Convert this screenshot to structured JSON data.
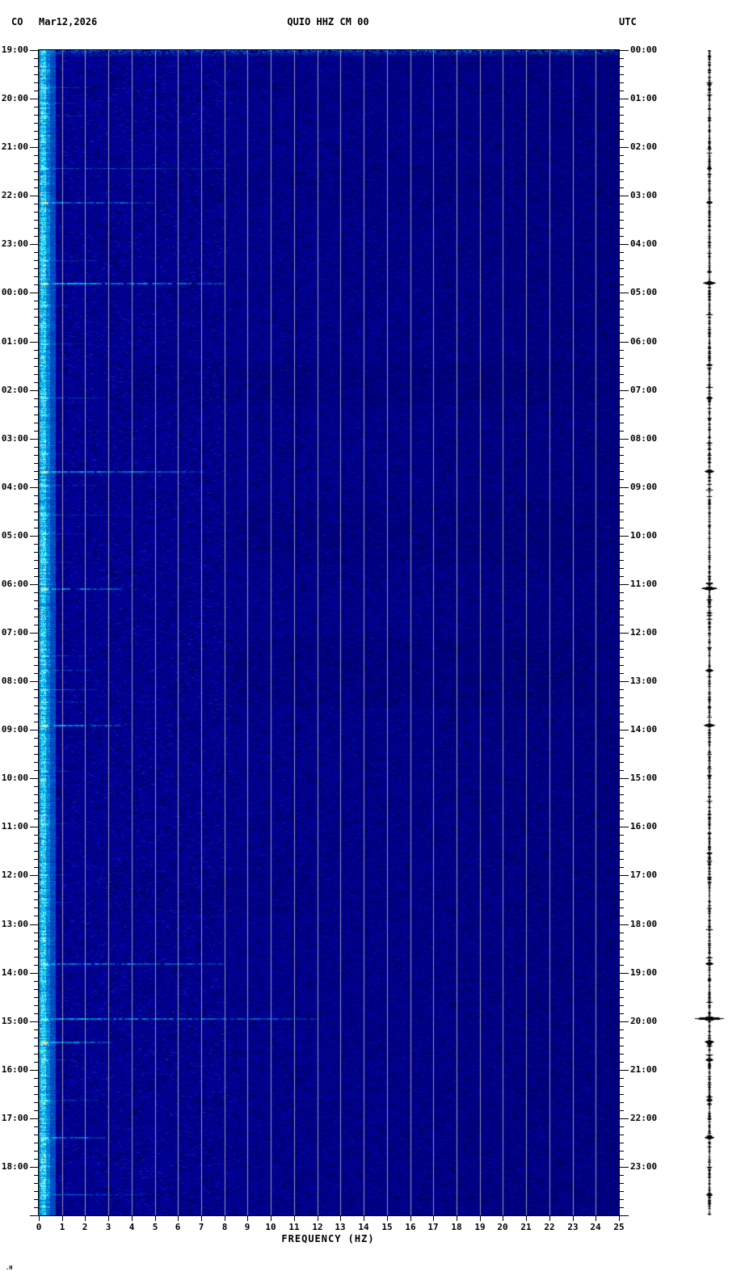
{
  "header": {
    "network": "CO",
    "date": "Mar12,2026",
    "station": "QUIO HHZ CM 00",
    "timezone": "UTC"
  },
  "y_axis_left": {
    "labels": [
      "19:00",
      "20:00",
      "21:00",
      "22:00",
      "23:00",
      "00:00",
      "01:00",
      "02:00",
      "03:00",
      "04:00",
      "05:00",
      "06:00",
      "07:00",
      "08:00",
      "09:00",
      "10:00",
      "11:00",
      "12:00",
      "13:00",
      "14:00",
      "15:00",
      "16:00",
      "17:00",
      "18:00"
    ],
    "minor_tick_minutes": 10
  },
  "y_axis_right": {
    "labels": [
      "00:00",
      "01:00",
      "02:00",
      "03:00",
      "04:00",
      "05:00",
      "06:00",
      "07:00",
      "08:00",
      "09:00",
      "10:00",
      "11:00",
      "12:00",
      "13:00",
      "14:00",
      "15:00",
      "16:00",
      "17:00",
      "18:00",
      "19:00",
      "20:00",
      "21:00",
      "22:00",
      "23:00"
    ],
    "minor_tick_minutes": 10
  },
  "x_axis": {
    "label": "FREQUENCY (HZ)",
    "ticks": [
      0,
      1,
      2,
      3,
      4,
      5,
      6,
      7,
      8,
      9,
      10,
      11,
      12,
      13,
      14,
      15,
      16,
      17,
      18,
      19,
      20,
      21,
      22,
      23,
      24,
      25
    ],
    "min": 0,
    "max": 25
  },
  "corner_mark": ".H",
  "colors": {
    "page_background": "#FFFFFF",
    "plot_base": "#00009A",
    "gridline": "#9A9AAE",
    "microseism_band": "#00E8FF",
    "hot_spot": "#FFE878",
    "streak": "#00D7FF",
    "text_and_trace": "#000000"
  },
  "chart_data": {
    "type": "heatmap",
    "title": "QUIO HHZ CM 00",
    "subtitle": "24-hour seismic spectrogram beginning 19:00 local (00:00 UTC), Mar12,2026",
    "xlabel": "FREQUENCY (HZ)",
    "x_range_hz": [
      0,
      25
    ],
    "x_gridline_interval_hz": 1,
    "duration_hours": 24,
    "y_left_start": "19:00",
    "y_right_start": "00:00",
    "background_level": "low power (dark blue) across 1-25 Hz",
    "persistent_band": {
      "freq_range_hz": [
        0,
        0.7
      ],
      "description": "continuous bright cyan/white microseism band along the left edge for all 24 hours"
    },
    "warmup_row": {
      "t_hours": 0,
      "description": "brighter mottled row across all frequencies at the very top (19:00)"
    },
    "events": [
      {
        "t": 0.77,
        "fmax": 2.2,
        "i": 0.35,
        "hot": 0,
        "amp": 0
      },
      {
        "t": 1.08,
        "fmax": 1.6,
        "i": 0.3,
        "hot": 0,
        "amp": 0
      },
      {
        "t": 1.35,
        "fmax": 2.0,
        "i": 0.3,
        "hot": 0,
        "amp": 0
      },
      {
        "t": 2.43,
        "fmax": 8.0,
        "i": 0.5,
        "hot": 0,
        "amp": 3
      },
      {
        "t": 3.13,
        "fmax": 5.0,
        "i": 0.65,
        "hot": 1,
        "amp": 4
      },
      {
        "t": 4.33,
        "fmax": 2.5,
        "i": 0.35,
        "hot": 0,
        "amp": 0
      },
      {
        "t": 4.79,
        "fmax": 8.0,
        "i": 0.9,
        "hot": 1,
        "amp": 8
      },
      {
        "t": 5.24,
        "fmax": 1.5,
        "i": 0.3,
        "hot": 0,
        "amp": 0
      },
      {
        "t": 6.04,
        "fmax": 2.0,
        "i": 0.3,
        "hot": 0,
        "amp": 0
      },
      {
        "t": 7.16,
        "fmax": 2.8,
        "i": 0.5,
        "hot": 0,
        "amp": 4
      },
      {
        "t": 8.3,
        "fmax": 1.5,
        "i": 0.3,
        "hot": 0,
        "amp": 0
      },
      {
        "t": 8.67,
        "fmax": 7.0,
        "i": 0.85,
        "hot": 1,
        "amp": 6
      },
      {
        "t": 8.95,
        "fmax": 2.5,
        "i": 0.4,
        "hot": 0,
        "amp": 0
      },
      {
        "t": 9.57,
        "fmax": 3.0,
        "i": 0.4,
        "hot": 0,
        "amp": 0
      },
      {
        "t": 9.95,
        "fmax": 2.0,
        "i": 0.3,
        "hot": 0,
        "amp": 0
      },
      {
        "t": 10.53,
        "fmax": 1.5,
        "i": 0.35,
        "hot": 0,
        "amp": 0
      },
      {
        "t": 11.08,
        "fmax": 3.5,
        "i": 0.8,
        "hot": 1,
        "amp": 10
      },
      {
        "t": 12.47,
        "fmax": 2.0,
        "i": 0.4,
        "hot": 0,
        "amp": 0
      },
      {
        "t": 12.77,
        "fmax": 2.2,
        "i": 0.45,
        "hot": 0,
        "amp": 5
      },
      {
        "t": 13.16,
        "fmax": 2.5,
        "i": 0.5,
        "hot": 0,
        "amp": 0
      },
      {
        "t": 13.41,
        "fmax": 2.0,
        "i": 0.45,
        "hot": 0,
        "amp": 0
      },
      {
        "t": 13.9,
        "fmax": 3.5,
        "i": 0.85,
        "hot": 1,
        "amp": 7
      },
      {
        "t": 14.85,
        "fmax": 1.5,
        "i": 0.3,
        "hot": 0,
        "amp": 0
      },
      {
        "t": 15.93,
        "fmax": 1.5,
        "i": 0.3,
        "hot": 0,
        "amp": 0
      },
      {
        "t": 16.98,
        "fmax": 1.8,
        "i": 0.3,
        "hot": 0,
        "amp": 0
      },
      {
        "t": 17.55,
        "fmax": 1.5,
        "i": 0.3,
        "hot": 0,
        "amp": 0
      },
      {
        "t": 18.81,
        "fmax": 8.0,
        "i": 0.7,
        "hot": 0,
        "amp": 5
      },
      {
        "t": 19.94,
        "fmax": 12.0,
        "i": 0.75,
        "hot": 0,
        "amp": 18
      },
      {
        "t": 20.42,
        "fmax": 3.0,
        "i": 0.8,
        "hot": 1,
        "amp": 6
      },
      {
        "t": 20.79,
        "fmax": 1.5,
        "i": 0.4,
        "hot": 0,
        "amp": 5
      },
      {
        "t": 21.62,
        "fmax": 2.5,
        "i": 0.55,
        "hot": 0,
        "amp": 4
      },
      {
        "t": 22.39,
        "fmax": 3.0,
        "i": 0.7,
        "hot": 0,
        "amp": 6
      },
      {
        "t": 23.57,
        "fmax": 4.5,
        "i": 0.6,
        "hot": 0,
        "amp": 4
      }
    ],
    "shadow_bands": [
      {
        "t0": 2.4,
        "t1": 3.2,
        "f0": 5,
        "f1": 20,
        "s": 0.2
      },
      {
        "t0": 6.45,
        "t1": 7.3,
        "f0": 4,
        "f1": 24,
        "s": 0.35
      },
      {
        "t0": 9.3,
        "t1": 10.6,
        "f0": 8,
        "f1": 24,
        "s": 0.3
      },
      {
        "t0": 12.1,
        "t1": 13.5,
        "f0": 8,
        "f1": 24,
        "s": 0.35
      },
      {
        "t0": 16.9,
        "t1": 17.8,
        "f0": 3,
        "f1": 12,
        "s": 0.25
      }
    ],
    "side_trace": {
      "description": "vertical black seismogram trace at far right; horizontal excursion amplitude follows event list (largest near 20:00 UTC)"
    },
    "legend_position": "none",
    "grid": "vertical gray lines at every integer Hz"
  }
}
